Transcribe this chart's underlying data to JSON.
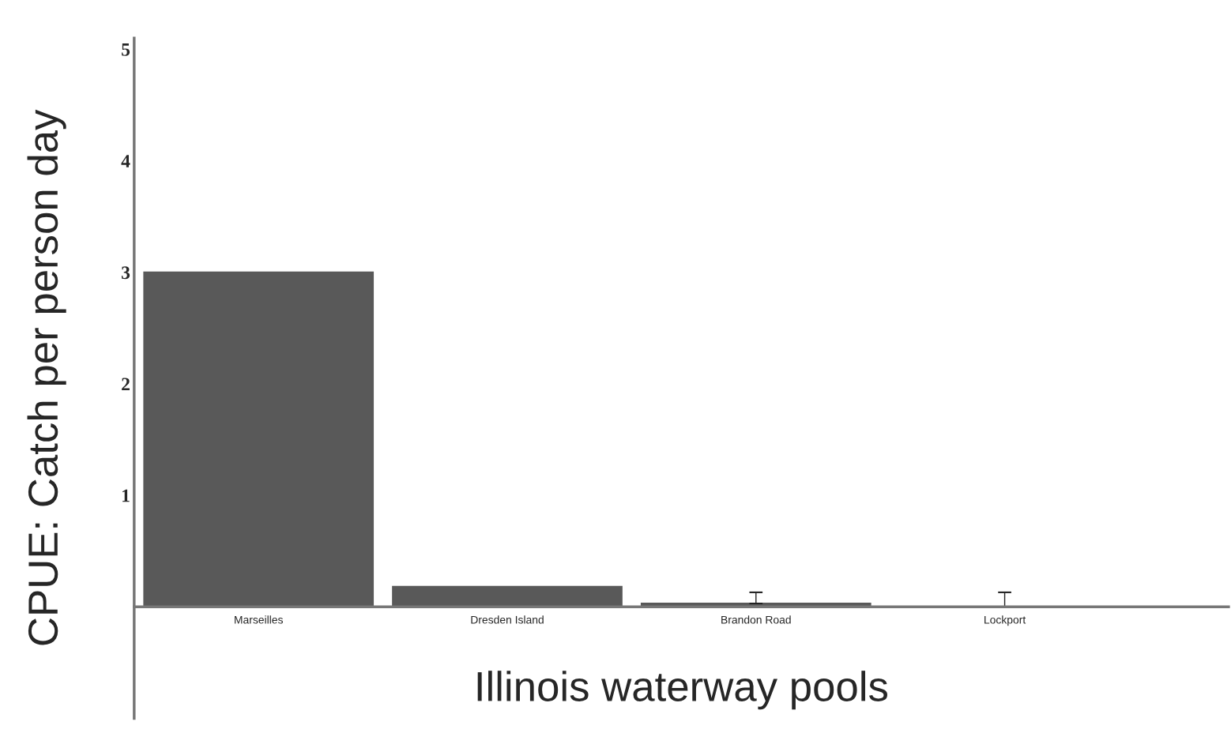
{
  "chart_data": {
    "type": "bar",
    "xlabel": "Illinois waterway pools",
    "ylabel": "CPUE: Catch per person day",
    "categories": [
      "Marseilles",
      "Dresden Island",
      "Brandon Road",
      "Lockport"
    ],
    "values": [
      3.0,
      0.18,
      0.03,
      0.0
    ],
    "color": "#595959",
    "errors": [
      null,
      null,
      [
        0.03,
        0.13
      ],
      [
        0.0,
        0.13
      ]
    ],
    "ylim": [
      -1,
      5.1
    ],
    "yticks": [
      1,
      2,
      3,
      4,
      5
    ],
    "grid": false,
    "legend": false
  }
}
